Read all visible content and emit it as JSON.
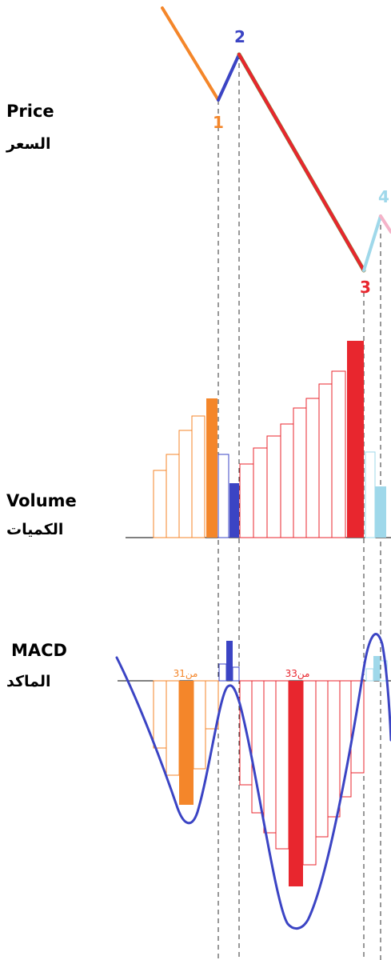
{
  "labels": {
    "price_en": "Price",
    "price_ar": "السعر",
    "volume_en": "Volume",
    "volume_ar": "الكميات",
    "macd_en": "MACD",
    "macd_ar": "الماكد"
  },
  "waves": [
    {
      "number": "1",
      "color": "#f4862a"
    },
    {
      "number": "2",
      "color": "#3b44c4"
    },
    {
      "number": "3",
      "color": "#e8262e"
    },
    {
      "number": "4",
      "color": "#9fd8ea"
    }
  ],
  "macd_counts": {
    "wave1": "3من1",
    "wave3": "3من3"
  },
  "colors": {
    "wave1": "#f4862a",
    "wave2": "#3b44c4",
    "wave3": "#e8262e",
    "wave4": "#9fd8ea",
    "wave5": "#f5b3c8",
    "macd_line": "#3b44c4",
    "guides": "#333333"
  }
}
